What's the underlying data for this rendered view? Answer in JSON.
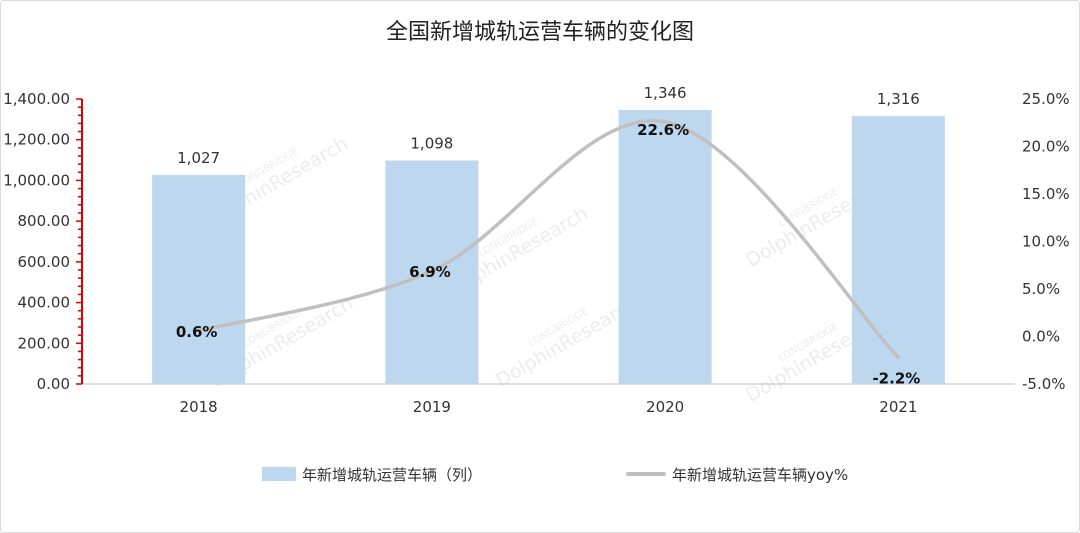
{
  "title": "全国新增城轨运营车辆的变化图",
  "watermark": {
    "line1": "LONGBRIDGE",
    "line2": "DolphinResearch"
  },
  "colors": {
    "bar": "#bdd7ee",
    "line": "#c0c0c0",
    "left_axis": "#e00000"
  },
  "chart_data": {
    "type": "bar",
    "categories": [
      "2018",
      "2019",
      "2020",
      "2021"
    ],
    "series": [
      {
        "name": "年新增城轨运营车辆（列）",
        "kind": "bar",
        "axis": "left",
        "values": [
          1027,
          1098,
          1346,
          1316
        ],
        "labels": [
          "1,027",
          "1,098",
          "1,346",
          "1,316"
        ]
      },
      {
        "name": "年新增城轨运营车辆yoy%",
        "kind": "line",
        "smooth": true,
        "axis": "right",
        "values": [
          0.6,
          6.9,
          22.6,
          -2.2
        ],
        "labels": [
          "0.6%",
          "6.9%",
          "22.6%",
          "-2.2%"
        ]
      }
    ],
    "y_left": {
      "ylim": [
        0,
        1400
      ],
      "ticks": [
        0,
        200,
        400,
        600,
        800,
        1000,
        1200,
        1400
      ],
      "tick_labels": [
        "0.00",
        "200.00",
        "400.00",
        "600.00",
        "800.00",
        "1,000.00",
        "1,200.00",
        "1,400.00"
      ]
    },
    "y_right": {
      "ylim": [
        -5,
        25
      ],
      "ticks": [
        -5,
        0,
        5,
        10,
        15,
        20,
        25
      ],
      "tick_labels": [
        "-5.0%",
        "0.0%",
        "5.0%",
        "10.0%",
        "15.0%",
        "20.0%",
        "25.0%"
      ]
    },
    "grid": false,
    "legend_position": "bottom"
  }
}
